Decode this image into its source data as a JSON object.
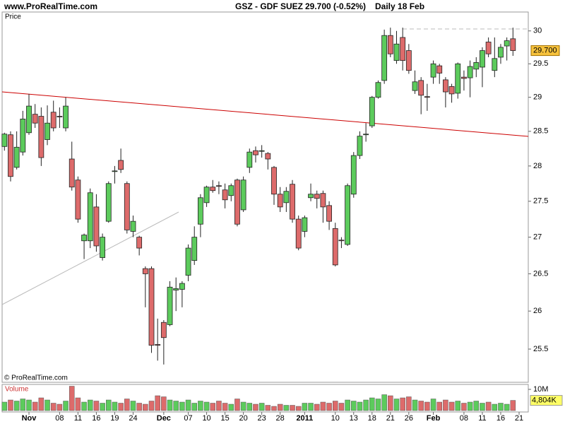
{
  "header": {
    "site": "www.ProRealTime.com",
    "symbol": "GSZ - GDF SUEZ",
    "quote": "29.700 (-0.52%)",
    "period": "Daily  18 Feb"
  },
  "chart_data": {
    "type": "candlestick",
    "price_label": "Price",
    "copyright": "© ProRealTime.com",
    "log_scale": true,
    "grid": false,
    "up_color": "#5ccb5c",
    "down_color": "#dd6b6b",
    "categories": [
      null,
      null,
      null,
      null,
      "Nov",
      null,
      null,
      null,
      null,
      "08",
      null,
      null,
      "11",
      null,
      null,
      "16",
      null,
      null,
      "19",
      null,
      null,
      "24",
      null,
      null,
      null,
      null,
      "Dec",
      null,
      null,
      null,
      "07",
      null,
      null,
      "10",
      null,
      null,
      "15",
      null,
      null,
      "20",
      null,
      null,
      "23",
      null,
      null,
      "28",
      null,
      null,
      null,
      "2011",
      null,
      null,
      null,
      null,
      "10",
      null,
      null,
      "13",
      null,
      null,
      "18",
      null,
      null,
      "21",
      null,
      null,
      "26",
      null,
      null,
      null,
      "Feb",
      null,
      null,
      null,
      null,
      "08",
      null,
      null,
      "11",
      null,
      null,
      "16",
      null,
      null,
      "21"
    ],
    "open": [
      28.28,
      28.45,
      27.98,
      28.2,
      28.48,
      28.75,
      28.72,
      28.38,
      28.78,
      28.72,
      28.55,
      28.1,
      27.8,
      26.95,
      26.95,
      27.42,
      26.72,
      27.22,
      27.92,
      28.08,
      27.75,
      27.08,
      27.0,
      26.57,
      26.57,
      25.56,
      25.85,
      25.82,
      26.28,
      26.29,
      26.48,
      26.68,
      27.18,
      27.48,
      27.7,
      27.72,
      27.66,
      27.58,
      27.8,
      27.38,
      27.98,
      28.22,
      28.21,
      28.18,
      27.98,
      27.6,
      27.48,
      27.74,
      27.25,
      27.08,
      27.55,
      27.6,
      27.61,
      27.44,
      27.12,
      26.96,
      26.9,
      27.6,
      28.15,
      28.45,
      28.58,
      29.0,
      29.25,
      29.93,
      29.55,
      29.9,
      29.7,
      29.1,
      29.25,
      29.01,
      29.3,
      29.47,
      29.26,
      29.16,
      29.06,
      29.3,
      29.29,
      29.42,
      29.45,
      29.83,
      29.4,
      29.6,
      29.77,
      29.88,
      null
    ],
    "high": [
      28.48,
      28.5,
      28.5,
      28.8,
      29.05,
      28.9,
      28.85,
      28.88,
      28.95,
      28.85,
      29.0,
      28.35,
      27.85,
      27.05,
      27.68,
      27.6,
      27.05,
      27.78,
      28.0,
      28.25,
      27.78,
      27.3,
      27.02,
      26.6,
      26.6,
      25.9,
      25.88,
      26.4,
      26.45,
      26.4,
      26.9,
      27.15,
      27.6,
      27.72,
      27.8,
      27.78,
      27.75,
      27.75,
      27.82,
      27.85,
      28.25,
      28.28,
      28.3,
      28.2,
      28.0,
      27.7,
      27.7,
      27.8,
      27.3,
      27.3,
      27.75,
      27.65,
      27.65,
      27.5,
      27.2,
      27.0,
      27.75,
      28.2,
      28.5,
      28.62,
      29.02,
      29.25,
      30.02,
      30.05,
      30.0,
      30.05,
      29.8,
      29.4,
      29.3,
      29.2,
      29.55,
      29.5,
      29.3,
      29.2,
      29.52,
      29.4,
      29.55,
      29.6,
      29.75,
      29.9,
      29.9,
      29.8,
      29.9,
      30.05,
      null
    ],
    "low": [
      28.22,
      27.78,
      27.95,
      28.15,
      28.45,
      28.55,
      28.0,
      28.3,
      28.5,
      28.55,
      28.5,
      27.65,
      27.2,
      26.7,
      26.85,
      26.8,
      26.68,
      27.2,
      27.75,
      27.9,
      27.05,
      27.0,
      26.75,
      26.05,
      25.45,
      25.35,
      25.3,
      25.8,
      26.0,
      26.05,
      26.4,
      26.62,
      27.0,
      27.42,
      27.62,
      27.6,
      27.4,
      27.5,
      27.15,
      27.35,
      27.9,
      28.05,
      28.12,
      27.95,
      27.45,
      27.35,
      27.35,
      27.2,
      26.82,
      27.0,
      27.5,
      27.4,
      27.2,
      27.1,
      26.6,
      26.85,
      26.88,
      27.55,
      28.1,
      28.35,
      28.55,
      28.98,
      29.2,
      29.6,
      29.5,
      29.4,
      29.35,
      29.05,
      28.75,
      28.8,
      29.2,
      29.2,
      28.85,
      28.92,
      28.98,
      29.1,
      29.0,
      29.3,
      29.15,
      29.6,
      29.3,
      29.5,
      29.55,
      29.62,
      null
    ],
    "close": [
      28.46,
      27.85,
      28.27,
      28.68,
      28.87,
      28.62,
      28.12,
      28.62,
      28.55,
      28.71,
      28.87,
      27.7,
      27.25,
      27.03,
      27.62,
      26.88,
      27.0,
      27.75,
      27.93,
      27.95,
      27.1,
      27.22,
      26.85,
      26.5,
      25.55,
      25.55,
      25.65,
      26.32,
      26.3,
      26.37,
      26.85,
      27.0,
      27.55,
      27.7,
      27.65,
      27.71,
      27.52,
      27.72,
      27.18,
      27.8,
      28.2,
      28.16,
      28.22,
      28.1,
      27.6,
      27.42,
      27.64,
      27.25,
      26.85,
      27.27,
      27.6,
      27.54,
      27.42,
      27.22,
      26.62,
      26.95,
      27.72,
      28.15,
      28.43,
      28.46,
      29.0,
      29.22,
      29.93,
      29.65,
      29.8,
      29.55,
      29.4,
      29.23,
      29.03,
      29.0,
      29.5,
      29.36,
      29.08,
      29.05,
      29.5,
      29.28,
      29.46,
      29.52,
      29.7,
      29.65,
      29.58,
      29.75,
      29.85,
      29.7,
      null
    ],
    "ylim": [
      25.08,
      30.28
    ],
    "yticks": [
      25.5,
      26,
      26.5,
      27,
      27.5,
      28,
      28.5,
      29,
      29.5,
      30
    ],
    "last_price": {
      "value": 29.7,
      "label": "29.700"
    },
    "last_price_color": "#f7c23c",
    "volume": {
      "label": "Volume",
      "values": [
        4.0,
        5.0,
        4.5,
        5.5,
        5.0,
        4.0,
        6.0,
        5.0,
        3.5,
        3.0,
        4.5,
        11.5,
        6.0,
        4.0,
        5.0,
        4.5,
        3.5,
        5.0,
        4.0,
        3.5,
        5.5,
        4.5,
        3.5,
        3.0,
        4.5,
        7.0,
        6.5,
        5.0,
        4.5,
        4.0,
        5.0,
        3.5,
        4.5,
        4.0,
        3.5,
        4.5,
        3.5,
        3.0,
        5.5,
        4.0,
        3.5,
        3.0,
        3.5,
        2.5,
        2.0,
        3.0,
        2.5,
        2.5,
        2.0,
        3.5,
        3.5,
        3.0,
        4.0,
        3.5,
        4.5,
        3.5,
        5.0,
        4.5,
        4.0,
        5.0,
        6.0,
        5.5,
        7.5,
        7.0,
        5.5,
        6.0,
        6.5,
        5.0,
        4.5,
        4.0,
        5.5,
        4.0,
        5.0,
        4.0,
        4.5,
        3.5,
        4.0,
        4.5,
        3.5,
        4.0,
        3.0,
        3.5,
        3.0,
        4.804,
        null
      ],
      "ylim": [
        0,
        12
      ],
      "yticks": [
        {
          "value": 10,
          "label": "10M"
        }
      ],
      "last_value": {
        "value": 4.804,
        "label": "4,804K"
      },
      "last_value_color": "#ffff66"
    }
  }
}
